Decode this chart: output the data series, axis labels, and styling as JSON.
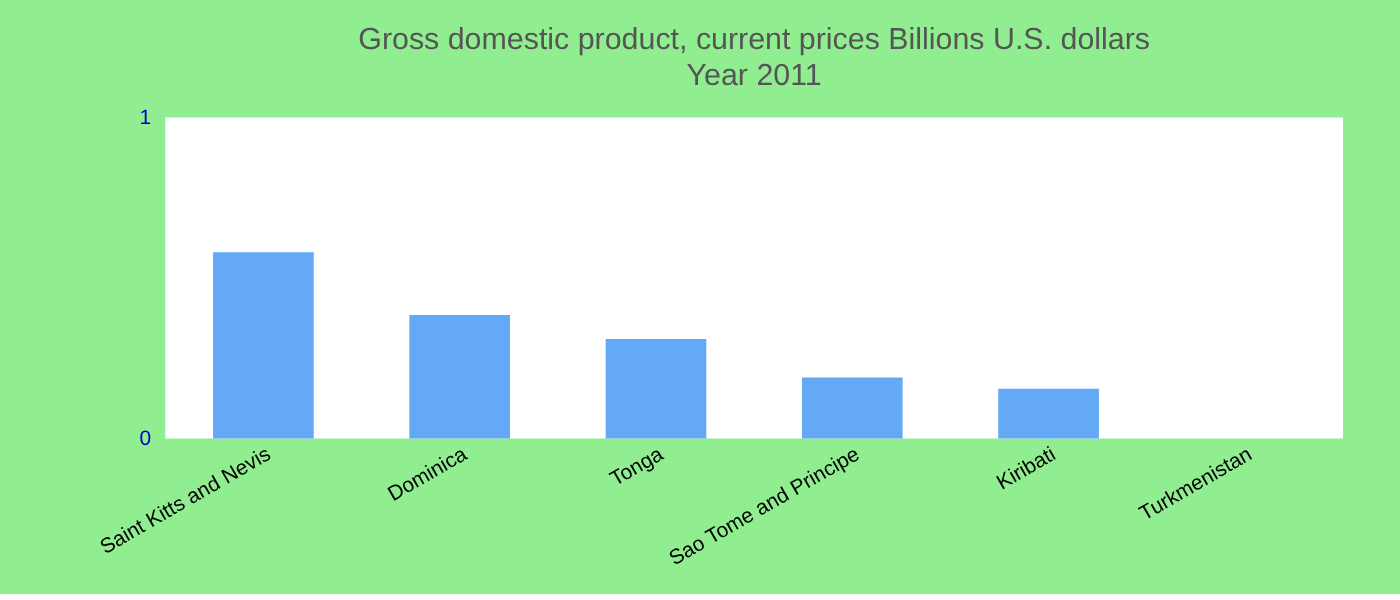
{
  "chart_data": {
    "type": "bar",
    "title": "Gross domestic product, current prices Billions U.S. dollars",
    "subtitle": "Year 2011",
    "categories": [
      "Saint Kitts and Nevis",
      "Dominica",
      "Tonga",
      "Sao Tome and Principe",
      "Kiribati",
      "Turkmenistan"
    ],
    "values": [
      0.58,
      0.385,
      0.31,
      0.19,
      0.155,
      null
    ],
    "color": "#63a9f5",
    "ylim": [
      0,
      1
    ],
    "yticks": [
      0,
      1
    ],
    "grid": false
  }
}
